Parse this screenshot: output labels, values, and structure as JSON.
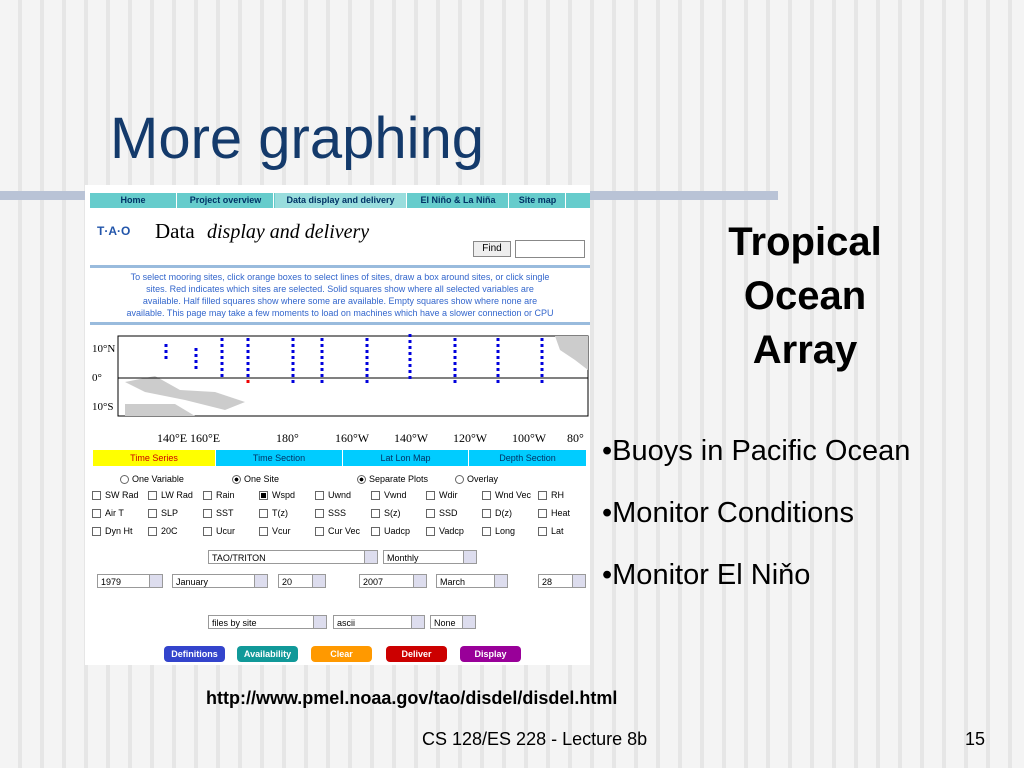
{
  "slide": {
    "title": "More graphing",
    "side_title": [
      "Tropical",
      "Ocean",
      "Array"
    ],
    "bullets": [
      "•Buoys in Pacific Ocean",
      "•Monitor Conditions",
      "•Monitor El Niňo"
    ],
    "url": "http://www.pmel.noaa.gov/tao/disdel/disdel.html",
    "footer": "CS 128/ES 228 - Lecture 8b",
    "page_number": "15"
  },
  "screenshot": {
    "nav": [
      "Home",
      "Project overview",
      "Data display and delivery",
      "El Niño & La Niña",
      "Site map"
    ],
    "logo": "T·A·O",
    "heading_word": "Data",
    "heading_rest": "display and delivery",
    "find_button": "Find",
    "instructions": [
      "To select mooring sites, click orange boxes to select lines of sites, draw a box around sites, or click single",
      "sites. Red indicates which sites are selected. Solid squares show where all selected variables are",
      "available. Half filled squares show where some are available. Empty squares show where none are",
      "available. This page may take a few moments to load on machines which have a slower connection or CPU"
    ],
    "lat_labels": [
      "10°N",
      "0°",
      "10°S"
    ],
    "lon_labels": [
      "140°E",
      "160°E",
      "180°",
      "160°W",
      "140°W",
      "120°W",
      "100°W",
      "80°"
    ],
    "tabs": [
      "Time Series",
      "Time Section",
      "Lat Lon Map",
      "Depth Section"
    ],
    "radios": [
      "One Variable",
      "One Site",
      "Separate Plots",
      "Overlay"
    ],
    "variables": [
      [
        "SW Rad",
        "LW Rad",
        "Rain",
        "Wspd",
        "Uwnd",
        "Vwnd",
        "Wdir",
        "Wnd Vec",
        "RH"
      ],
      [
        "Air T",
        "SLP",
        "SST",
        "T(z)",
        "SSS",
        "S(z)",
        "SSD",
        "D(z)",
        "Heat"
      ],
      [
        "Dyn Ht",
        "20C",
        "Ucur",
        "Vcur",
        "Cur Vec",
        "Uadcp",
        "Vadcp",
        "Long",
        "Lat"
      ]
    ],
    "selects": [
      [
        "TAO/TRITON",
        "Monthly"
      ],
      [
        "1979",
        "January",
        "20",
        "2007",
        "March",
        "28"
      ],
      [
        "files by site",
        "ascii",
        "None"
      ]
    ],
    "buttons": [
      "Definitions",
      "Availability",
      "Clear",
      "Deliver",
      "Display"
    ]
  }
}
